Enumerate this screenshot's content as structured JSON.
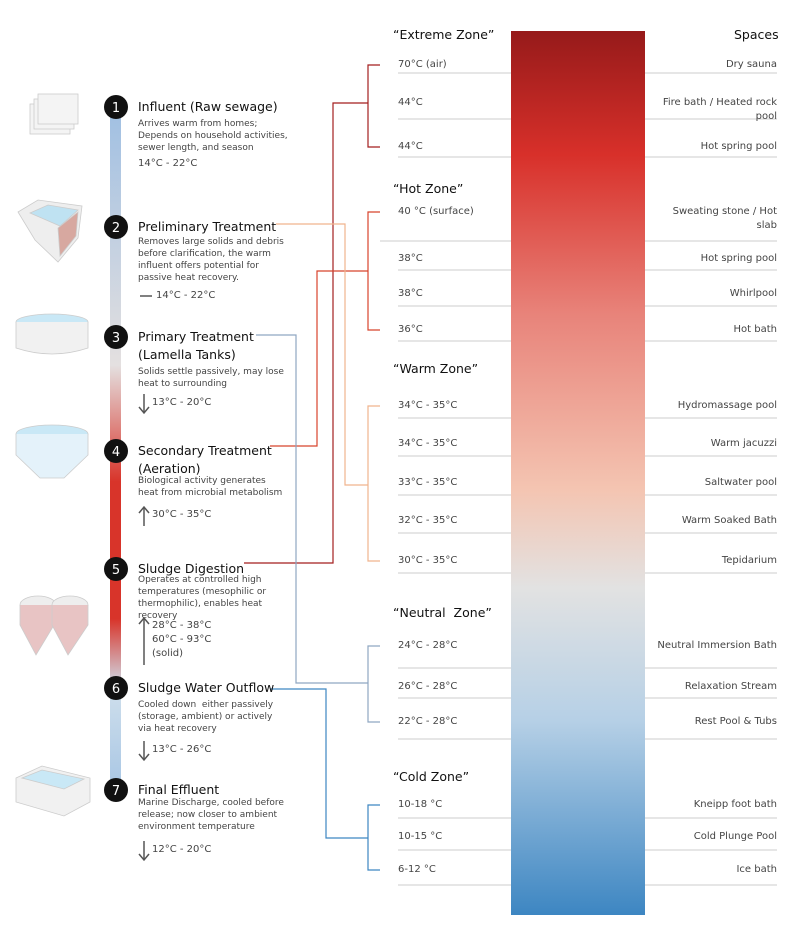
{
  "stages": [
    {
      "number": "1",
      "title": "Influent (Raw sewage)",
      "description": "Arrives warm from homes; Depends on household activities, sewer length, and season",
      "temperatures": [
        "14°C - 22°C"
      ]
    },
    {
      "number": "2",
      "title": "Preliminary Treatment",
      "description": "Removes large solids and debris before clarification, the warm influent offers potential for passive heat recovery.",
      "temperatures": [
        "14°C - 22°C"
      ]
    },
    {
      "number": "3",
      "title": "Primary Treatment (Lamella Tanks)",
      "description": "Solids settle passively, may lose heat to surrounding",
      "temperatures": [
        "13°C - 20°C"
      ]
    },
    {
      "number": "4",
      "title": "Secondary Treatment (Aeration)",
      "description": "Biological activity generates heat from microbial metabolism",
      "temperatures": [
        "30°C - 35°C"
      ]
    },
    {
      "number": "5",
      "title": "Sludge Digestion",
      "description": "Operates at controlled high temperatures (mesophilic or thermophilic), enables heat recovery",
      "temperatures": [
        "28°C - 38°C",
        "60°C - 93°C",
        "(solid)"
      ]
    },
    {
      "number": "6",
      "title": "Sludge Water Outflow",
      "description": "Cooled down  either passively (storage, ambient) or actively via heat recovery",
      "temperatures": [
        "13°C - 26°C"
      ]
    },
    {
      "number": "7",
      "title": "Final Effluent",
      "description": "Marine Discharge, cooled before release; now closer to ambient environment temperature",
      "temperatures": [
        "12°C - 20°C"
      ]
    }
  ],
  "spaces_header": "Spaces",
  "zones": [
    {
      "title": "“Extreme Zone”",
      "rows": [
        {
          "temperature": "70°C (air)",
          "space": "Dry sauna"
        },
        {
          "temperature": "44°C",
          "space": "Fire bath / Heated rock pool"
        },
        {
          "temperature": "44°C",
          "space": "Hot spring pool"
        }
      ]
    },
    {
      "title": "“Hot Zone”",
      "rows": [
        {
          "temperature": "40 °C (surface)",
          "space": "Sweating stone / Hot slab"
        },
        {
          "temperature": "38°C",
          "space": "Hot spring pool"
        },
        {
          "temperature": "38°C",
          "space": "Whirlpool"
        },
        {
          "temperature": "36°C",
          "space": "Hot bath"
        }
      ]
    },
    {
      "title": "“Warm Zone”",
      "rows": [
        {
          "temperature": "34°C - 35°C",
          "space": "Hydromassage pool"
        },
        {
          "temperature": "34°C - 35°C",
          "space": "Warm jacuzzi"
        },
        {
          "temperature": "33°C - 35°C",
          "space": "Saltwater pool"
        },
        {
          "temperature": "32°C - 35°C",
          "space": "Warm Soaked Bath"
        },
        {
          "temperature": "30°C - 35°C",
          "space": "Tepidarium"
        }
      ]
    },
    {
      "title": "“Neutral  Zone”",
      "rows": [
        {
          "temperature": "24°C - 28°C",
          "space": "Neutral Immersion Bath"
        },
        {
          "temperature": "26°C - 28°C",
          "space": "Relaxation Stream"
        },
        {
          "temperature": "22°C - 28°C",
          "space": "Rest Pool & Tubs"
        }
      ]
    },
    {
      "title": "“Cold Zone”",
      "rows": [
        {
          "temperature": "10-18 °C",
          "space": "Kneipp foot bath"
        },
        {
          "temperature": "10-15 °C",
          "space": "Cold Plunge Pool"
        },
        {
          "temperature": "6-12 °C",
          "space": "Ice bath"
        }
      ]
    }
  ]
}
